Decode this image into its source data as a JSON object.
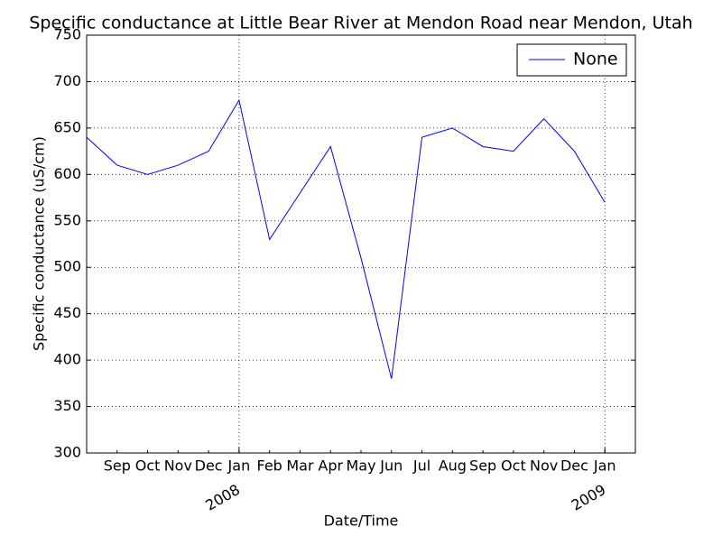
{
  "chart_data": {
    "type": "line",
    "title": "Specific conductance at Little Bear River at Mendon Road near Mendon, Utah",
    "x_label": "Date/Time",
    "y_label": "Specific conductance (uS/cm)",
    "x": [
      "2007-08",
      "2007-09",
      "2007-10",
      "2007-11",
      "2007-12",
      "2008-01",
      "2008-02",
      "2008-03",
      "2008-04",
      "2008-05",
      "2008-06",
      "2008-07",
      "2008-08",
      "2008-09",
      "2008-10",
      "2008-11",
      "2008-12",
      "2009-01"
    ],
    "series": [
      {
        "name": "None",
        "color": "#0000ff",
        "values": [
          640,
          610,
          600,
          610,
          625,
          680,
          530,
          580,
          630,
          510,
          380,
          640,
          650,
          630,
          625,
          660,
          625,
          570
        ]
      }
    ],
    "xlim": [
      "2007-08",
      "2009-02"
    ],
    "xticks": [
      {
        "value": "2007-09",
        "label": "Sep"
      },
      {
        "value": "2007-10",
        "label": "Oct"
      },
      {
        "value": "2007-11",
        "label": "Nov"
      },
      {
        "value": "2007-12",
        "label": "Dec"
      },
      {
        "value": "2008-01",
        "label": "Jan"
      },
      {
        "value": "2008-02",
        "label": "Feb"
      },
      {
        "value": "2008-03",
        "label": "Mar"
      },
      {
        "value": "2008-04",
        "label": "Apr"
      },
      {
        "value": "2008-05",
        "label": "May"
      },
      {
        "value": "2008-06",
        "label": "Jun"
      },
      {
        "value": "2008-07",
        "label": "Jul"
      },
      {
        "value": "2008-08",
        "label": "Aug"
      },
      {
        "value": "2008-09",
        "label": "Sep"
      },
      {
        "value": "2008-10",
        "label": "Oct"
      },
      {
        "value": "2008-11",
        "label": "Nov"
      },
      {
        "value": "2008-12",
        "label": "Dec"
      },
      {
        "value": "2009-01",
        "label": "Jan"
      }
    ],
    "xticks_major": [
      {
        "value": "2008-01",
        "label": "2008"
      },
      {
        "value": "2009-01",
        "label": "2009"
      }
    ],
    "ylim": [
      300,
      750
    ],
    "yticks": [
      300,
      350,
      400,
      450,
      500,
      550,
      600,
      650,
      700,
      750
    ],
    "grid": true,
    "legend": "upper right"
  }
}
